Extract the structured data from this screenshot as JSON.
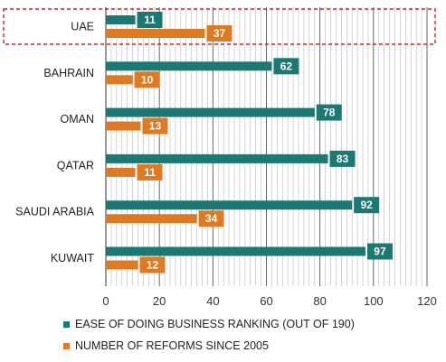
{
  "chart_data": {
    "type": "bar",
    "orientation": "horizontal",
    "categories": [
      "UAE",
      "BAHRAIN",
      "OMAN",
      "QATAR",
      "SAUDI ARABIA",
      "KUWAIT"
    ],
    "series": [
      {
        "name": "EASE OF DOING BUSINESS RANKING (OUT OF 190)",
        "values": [
          11,
          62,
          78,
          83,
          92,
          97
        ],
        "color": "#1a7a73"
      },
      {
        "name": "NUMBER OF REFORMS SINCE 2005",
        "values": [
          37,
          10,
          13,
          11,
          34,
          12
        ],
        "color": "#e07a22"
      }
    ],
    "xticks": [
      0,
      20,
      40,
      60,
      80,
      100,
      120
    ],
    "xlim": [
      0,
      120
    ],
    "grid": true,
    "legend_position": "bottom",
    "highlight": {
      "category": "UAE",
      "style": "red-dashed-box"
    }
  }
}
